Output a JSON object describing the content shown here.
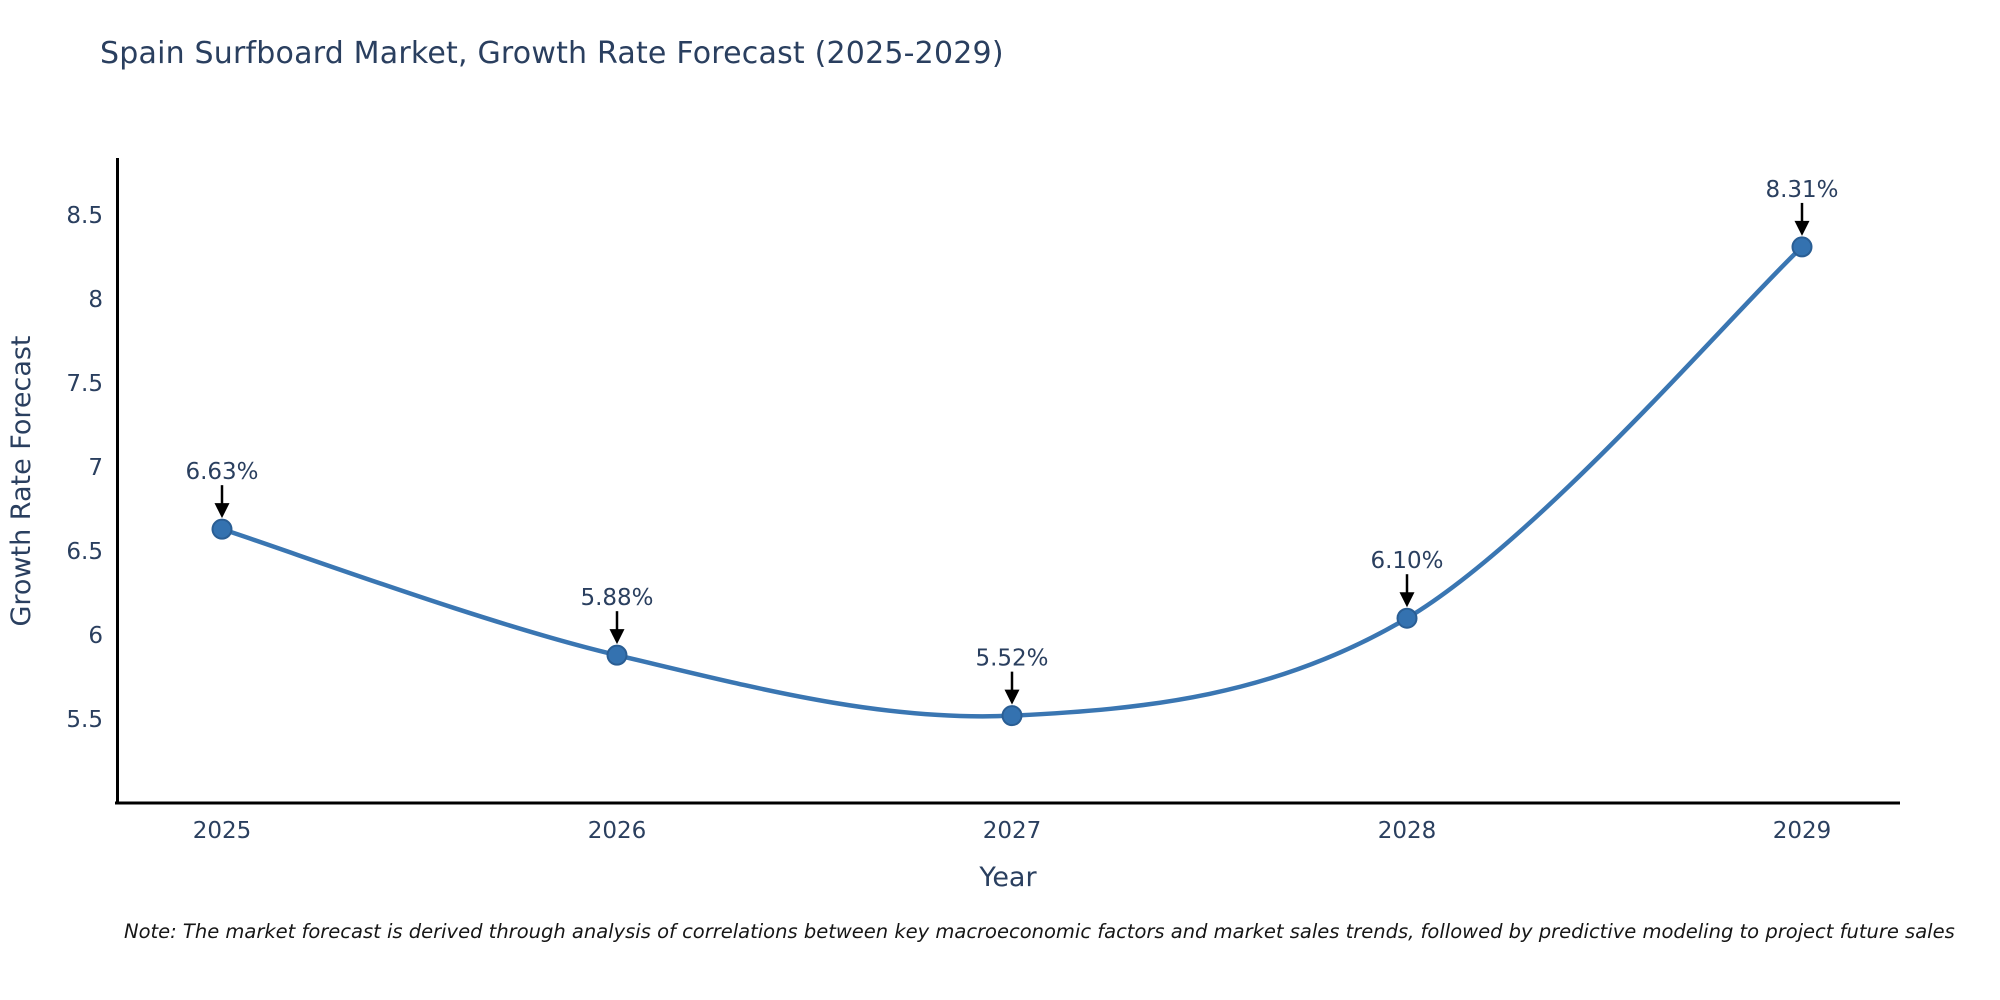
{
  "chart_data": {
    "type": "line",
    "line_shape": "spline",
    "title": "Spain Surfboard Market, Growth Rate Forecast (2025-2029)",
    "xlabel": "Year",
    "ylabel": "Growth Rate Forecast",
    "categories": [
      "2025",
      "2026",
      "2027",
      "2028",
      "2029"
    ],
    "values": [
      6.63,
      5.88,
      5.52,
      6.1,
      8.31
    ],
    "data_labels": [
      "6.63%",
      "5.88%",
      "5.52%",
      "6.10%",
      "8.31%"
    ],
    "ytick_values": [
      5.5,
      6,
      6.5,
      7,
      7.5,
      8,
      8.5
    ],
    "ylim": [
      5.0,
      8.8
    ],
    "grid": false,
    "legend": false,
    "colors": {
      "line": "#3a76b2",
      "marker": "#3472b0",
      "marker_edge": "#2a5e94",
      "axis": "#000000",
      "text": "#2a3f5f",
      "annotation_arrow": "#000000"
    }
  },
  "note": "Note: The market forecast is derived through analysis of correlations between key macroeconomic factors and market sales trends, followed by predictive modeling to project future sales"
}
